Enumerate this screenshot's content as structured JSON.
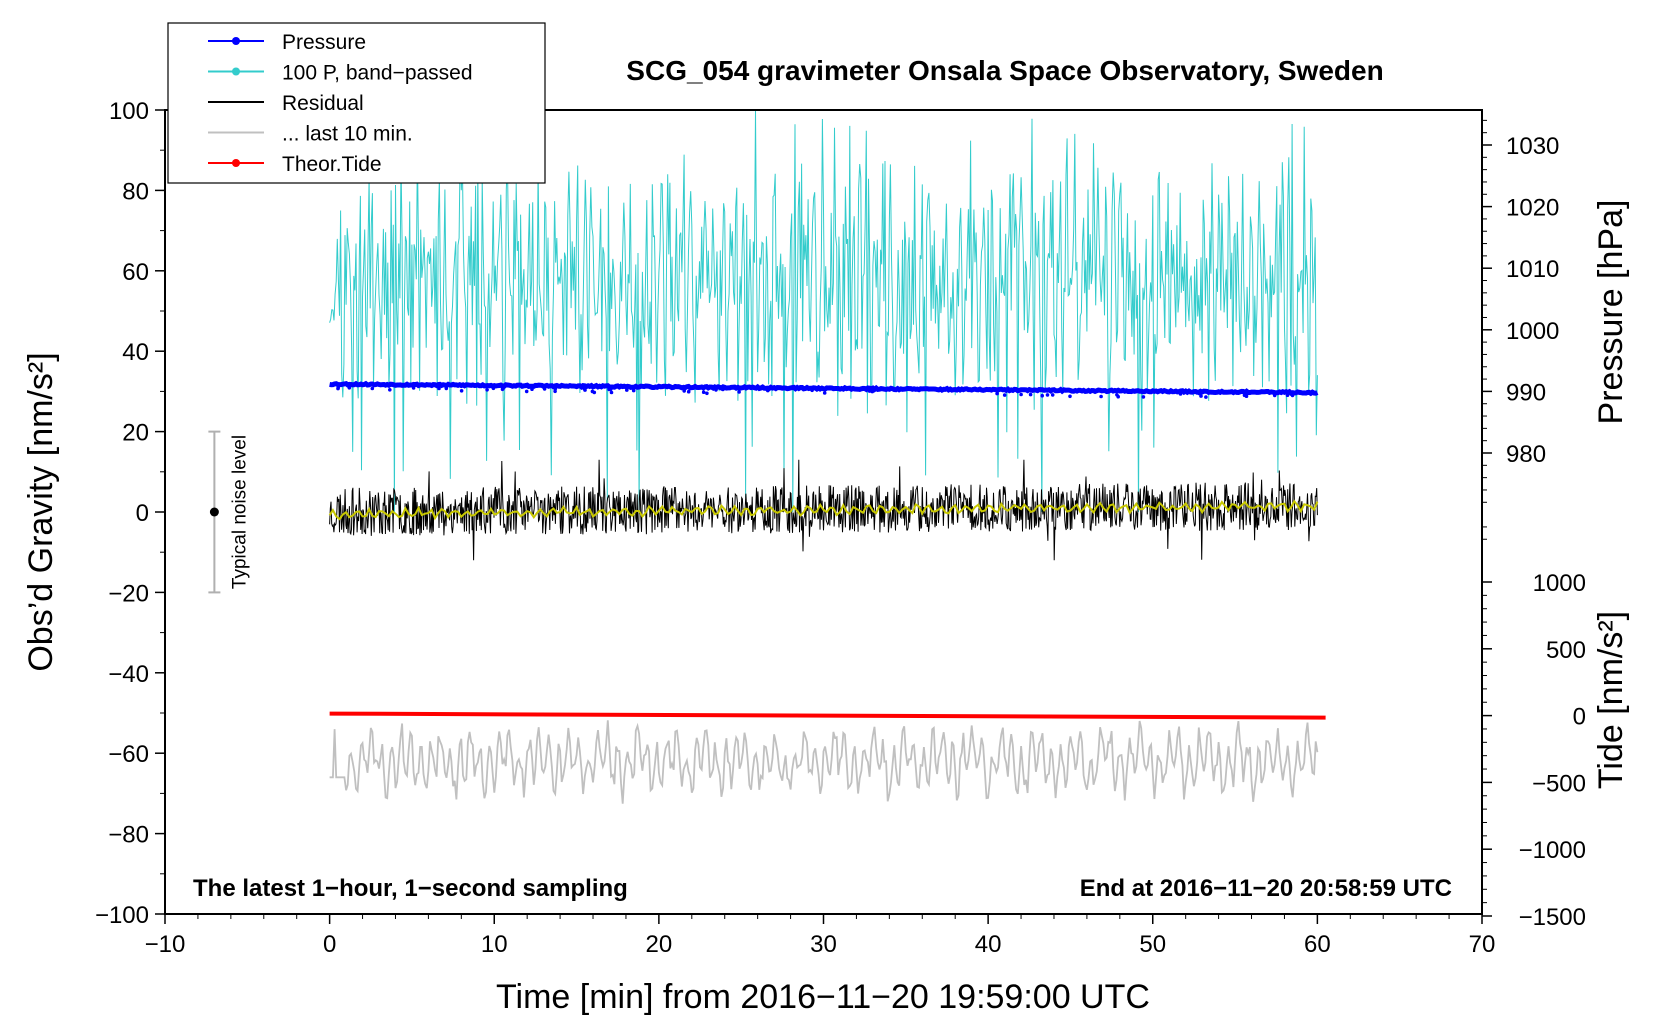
{
  "chart_data": {
    "type": "line",
    "title": "SCG_054 gravimeter Onsala Space Observatory, Sweden",
    "xlabel": "Time [min] from 2016−11−20 19:59:00 UTC",
    "ylabel_left": "Obs’d Gravity [nm/s²]",
    "ylabel_right_top": "Pressure [hPa]",
    "ylabel_right_bottom": "Tide [nm/s²]",
    "xlim": [
      -10,
      70
    ],
    "ylim_left": [
      -100,
      100
    ],
    "ylim_pressure": [
      965,
      1035
    ],
    "ylim_tide": [
      -1500,
      1000
    ],
    "x_ticks": [
      -10,
      0,
      10,
      20,
      30,
      40,
      50,
      60,
      70
    ],
    "x_tick_labels": [
      "−10",
      "0",
      "10",
      "20",
      "30",
      "40",
      "50",
      "60",
      "70"
    ],
    "y_left_ticks": [
      100,
      80,
      60,
      40,
      20,
      0,
      -20,
      -40,
      -60,
      -80,
      -100
    ],
    "y_left_tick_labels": [
      "100",
      "80",
      "60",
      "40",
      "20",
      "0",
      "−20",
      "−40",
      "−60",
      "−80",
      "−100"
    ],
    "y_pressure_ticks": [
      1030,
      1020,
      1010,
      1000,
      990,
      980
    ],
    "y_pressure_tick_labels": [
      "1030",
      "1020",
      "1010",
      "1000",
      "990",
      "980"
    ],
    "y_tide_ticks": [
      1000,
      500,
      0,
      -500,
      -1000,
      -1500
    ],
    "y_tide_tick_labels": [
      "1000",
      "500",
      "0",
      "−500",
      "−1000",
      "−1500"
    ],
    "legend": {
      "placement": "top-left",
      "entries": [
        {
          "label": "Pressure",
          "color": "#0000ff",
          "marker": true
        },
        {
          "label": "100 P, band−passed",
          "color": "#33cccc",
          "marker": true
        },
        {
          "label": "Residual",
          "color": "#000000",
          "marker": false
        },
        {
          "label": "... last 10 min.",
          "color": "#c0c0c0",
          "marker": false
        },
        {
          "label": "Theor.Tide",
          "color": "#ff0000",
          "marker": true
        }
      ]
    },
    "annotations": {
      "bottom_left": "The latest 1−hour, 1−second sampling",
      "bottom_right": "End at 2016−11−20 20:58:59 UTC",
      "noise_label": "Typical noise level"
    },
    "noise_bar": {
      "x": -7,
      "center": 0,
      "half_range": 20
    },
    "series": [
      {
        "name": "Pressure",
        "axis": "pressure",
        "color": "#0000ff",
        "x_range": [
          0,
          60
        ],
        "start": 991.2,
        "end": 989.8,
        "note": "dense dots, occasional downward spikes to ~988"
      },
      {
        "name": "100 P, band−passed",
        "axis": "left",
        "color": "#33cccc",
        "x_range": [
          0,
          60
        ],
        "center": 58,
        "typical_range": [
          30,
          85
        ],
        "extremes": [
          0,
          100
        ]
      },
      {
        "name": "Residual",
        "axis": "left",
        "color": "#000000",
        "x_range": [
          0,
          60
        ],
        "center": 0,
        "typical_range": [
          -8,
          8
        ],
        "extremes": [
          -12,
          13
        ]
      },
      {
        "name": "Residual smoothed",
        "axis": "left",
        "color": "#c8c800",
        "x_range": [
          0,
          60
        ],
        "start": -0.5,
        "end": 1.5
      },
      {
        "name": "... last 10 min.",
        "axis": "left",
        "color": "#c0c0c0",
        "x_range": [
          0,
          60
        ],
        "center": -62,
        "typical_range": [
          -72,
          -52
        ]
      },
      {
        "name": "Theor.Tide",
        "axis": "tide",
        "color": "#ff0000",
        "x_range": [
          0,
          60.5
        ],
        "start": 15,
        "end": -15
      }
    ]
  }
}
